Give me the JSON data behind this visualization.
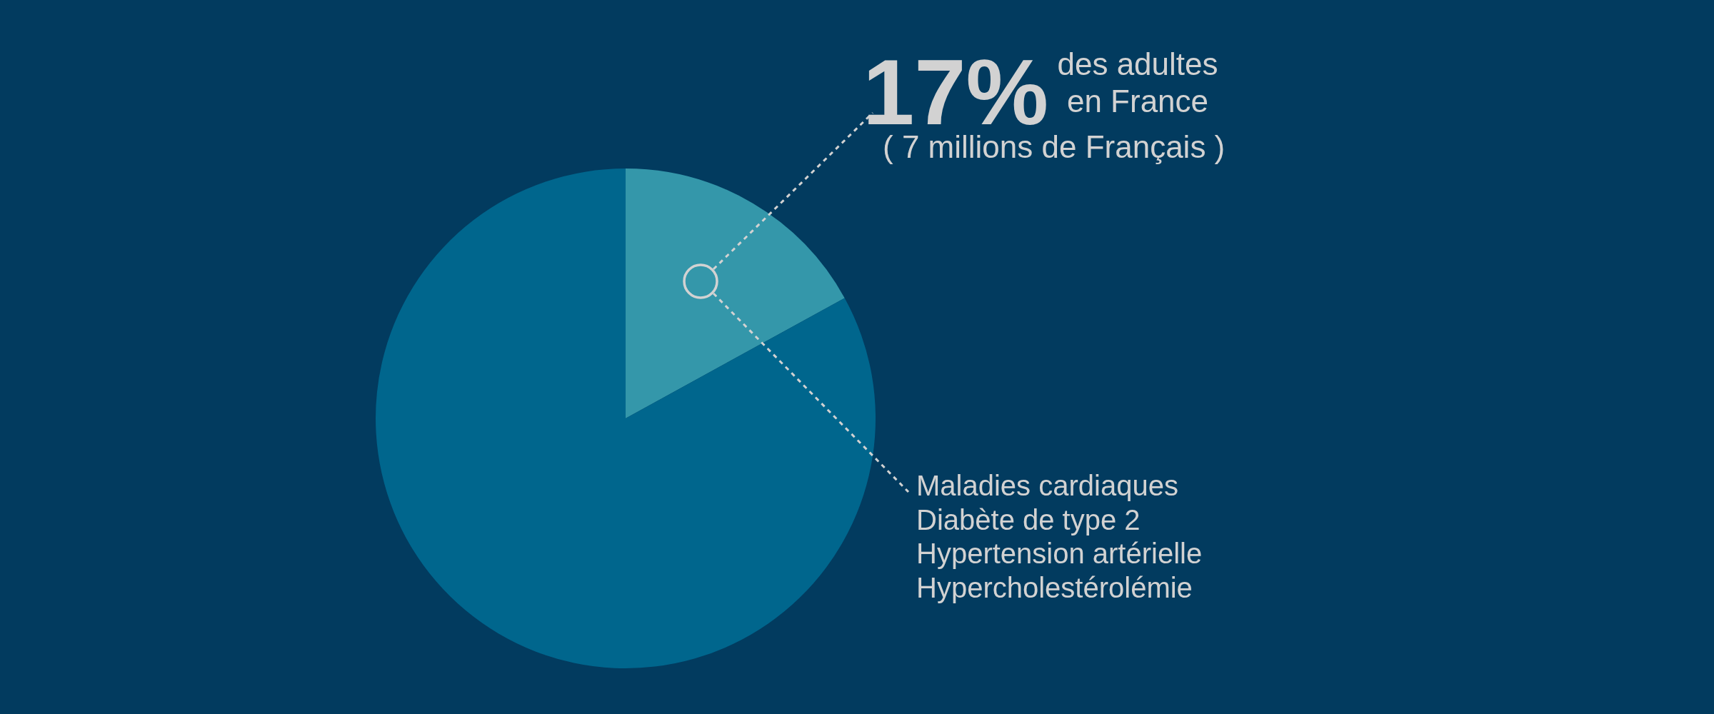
{
  "chart_data": {
    "type": "pie",
    "categories": [
      null,
      null
    ],
    "values": [
      17,
      83
    ],
    "colors": [
      "#3497aa",
      "#00668d"
    ],
    "value_labels": [
      "17%",
      null
    ],
    "annotations": [
      "des adultes en France",
      "( 7 millions de Français )",
      "Maladies cardiaques",
      "Diabète de type 2",
      "Hypertension artérielle",
      "Hypercholestérolémie"
    ]
  }
}
